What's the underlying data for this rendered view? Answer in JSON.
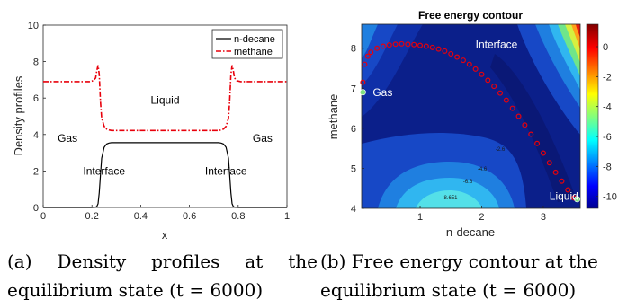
{
  "chart_data": [
    {
      "type": "line",
      "xlabel": "x",
      "ylabel": "Density profiles",
      "xlim": [
        0,
        1
      ],
      "ylim": [
        0,
        10
      ],
      "xticks": [
        "0",
        "0.2",
        "0.4",
        "0.6",
        "0.8",
        "1"
      ],
      "yticks": [
        "0",
        "2",
        "4",
        "6",
        "8",
        "10"
      ],
      "legend_position": "top-right",
      "series": [
        {
          "name": "n-decane",
          "color": "#000000",
          "style": "solid",
          "x": [
            0,
            0.2,
            0.215,
            0.22,
            0.225,
            0.23,
            0.235,
            0.24,
            0.25,
            0.26,
            0.27,
            0.28,
            0.72,
            0.73,
            0.74,
            0.75,
            0.76,
            0.765,
            0.77,
            0.775,
            0.78,
            0.785,
            0.8,
            1
          ],
          "y": [
            0,
            0,
            0.02,
            0.05,
            0.2,
            0.8,
            1.8,
            2.7,
            3.3,
            3.48,
            3.53,
            3.55,
            3.55,
            3.53,
            3.48,
            3.3,
            2.7,
            1.8,
            0.8,
            0.2,
            0.05,
            0.02,
            0,
            0
          ]
        },
        {
          "name": "methane",
          "color": "#e8000b",
          "style": "dashdot",
          "x": [
            0,
            0.19,
            0.205,
            0.215,
            0.22,
            0.225,
            0.23,
            0.235,
            0.24,
            0.25,
            0.26,
            0.27,
            0.28,
            0.72,
            0.73,
            0.74,
            0.75,
            0.76,
            0.765,
            0.77,
            0.775,
            0.78,
            0.785,
            0.795,
            0.81,
            1
          ],
          "y": [
            6.9,
            6.9,
            6.95,
            7.1,
            7.5,
            7.8,
            7.3,
            5.8,
            4.9,
            4.45,
            4.3,
            4.25,
            4.22,
            4.22,
            4.25,
            4.3,
            4.45,
            4.9,
            5.8,
            7.3,
            7.8,
            7.5,
            7.1,
            6.95,
            6.9,
            6.9
          ]
        }
      ],
      "annotations": [
        {
          "text": "Liquid",
          "x": 0.5,
          "y": 5.7
        },
        {
          "text": "Gas",
          "x": 0.1,
          "y": 3.6
        },
        {
          "text": "Gas",
          "x": 0.9,
          "y": 3.6
        },
        {
          "text": "Interface",
          "x": 0.25,
          "y": 1.8
        },
        {
          "text": "Interface",
          "x": 0.75,
          "y": 1.8
        }
      ]
    },
    {
      "type": "contour",
      "title": "Free energy contour",
      "xlabel": "n-decane",
      "ylabel": "methane",
      "xlim": [
        0.05,
        3.6
      ],
      "ylim": [
        4,
        8.6
      ],
      "xticks": [
        "1",
        "2",
        "3"
      ],
      "yticks": [
        "4",
        "5",
        "6",
        "7",
        "8"
      ],
      "colorbar_ticks": [
        "0",
        "-2",
        "-4",
        "-6",
        "-8",
        "-10"
      ],
      "colorbar_range": [
        -10.8,
        1.5
      ],
      "contour_labels": [
        "-8.651",
        "-6.6",
        "-4.6",
        "-2.6"
      ],
      "trajectory_color": "#e8000b",
      "trajectory": {
        "x": [
          0.07,
          0.1,
          0.15,
          0.2,
          0.3,
          0.4,
          0.5,
          0.6,
          0.7,
          0.8,
          0.9,
          1.0,
          1.1,
          1.2,
          1.3,
          1.4,
          1.5,
          1.6,
          1.7,
          1.8,
          1.9,
          2.0,
          2.1,
          2.2,
          2.3,
          2.4,
          2.5,
          2.6,
          2.7,
          2.8,
          2.9,
          3.0,
          3.1,
          3.2,
          3.3,
          3.4,
          3.5
        ],
        "y": [
          7.15,
          7.6,
          7.8,
          7.9,
          8.0,
          8.05,
          8.08,
          8.1,
          8.11,
          8.1,
          8.09,
          8.07,
          8.05,
          8.02,
          7.98,
          7.93,
          7.86,
          7.78,
          7.7,
          7.6,
          7.48,
          7.35,
          7.2,
          7.05,
          6.88,
          6.7,
          6.5,
          6.3,
          6.08,
          5.85,
          5.62,
          5.38,
          5.14,
          4.9,
          4.68,
          4.46,
          4.26
        ]
      },
      "annotations": [
        {
          "text": "Interface",
          "x": 1.9,
          "y": 8.1
        },
        {
          "text": "Gas",
          "x": 0.23,
          "y": 6.9
        },
        {
          "text": "Liquid",
          "x": 3.1,
          "y": 4.3
        }
      ],
      "points": [
        {
          "label": "Gas",
          "x": 0.07,
          "y": 6.9,
          "color": "#7fe07f"
        },
        {
          "label": "Liquid",
          "x": 3.55,
          "y": 4.23,
          "color": "#7fe07f"
        }
      ]
    }
  ],
  "captions": {
    "a_parts": [
      "(a)",
      "Density",
      "profiles",
      "at",
      "the"
    ],
    "a_line2": "equilibrium state (t = 6000)",
    "b_line1": "(b) Free energy contour at the",
    "b_line2": "equilibrium state (t = 6000)"
  }
}
